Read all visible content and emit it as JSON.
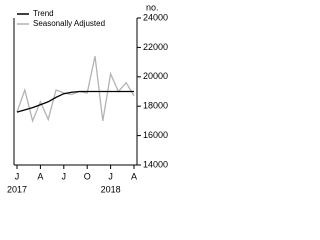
{
  "chart_data": {
    "type": "line",
    "categories": [
      "J",
      null,
      null,
      "A",
      null,
      null,
      "J",
      null,
      null,
      "O",
      null,
      null,
      "J",
      null,
      null,
      "A"
    ],
    "years": [
      "2017",
      "2018"
    ],
    "y_axis_label": "no.",
    "series": [
      {
        "name": "Trend",
        "color": "#000000",
        "values": [
          17600,
          17750,
          17900,
          18100,
          18300,
          18600,
          18850,
          18950,
          19000,
          19000,
          19000,
          19000,
          19000,
          19000,
          19000,
          19000
        ]
      },
      {
        "name": "Seasonally Adjusted",
        "color": "#b3b3b3",
        "values": [
          17600,
          19100,
          17000,
          18300,
          17100,
          19100,
          18900,
          18800,
          19000,
          18900,
          21400,
          17000,
          20200,
          19000,
          19600,
          18700
        ]
      }
    ],
    "ylim": [
      14000,
      24000
    ],
    "yticks": [
      14000,
      16000,
      18000,
      20000,
      22000,
      24000
    ]
  }
}
